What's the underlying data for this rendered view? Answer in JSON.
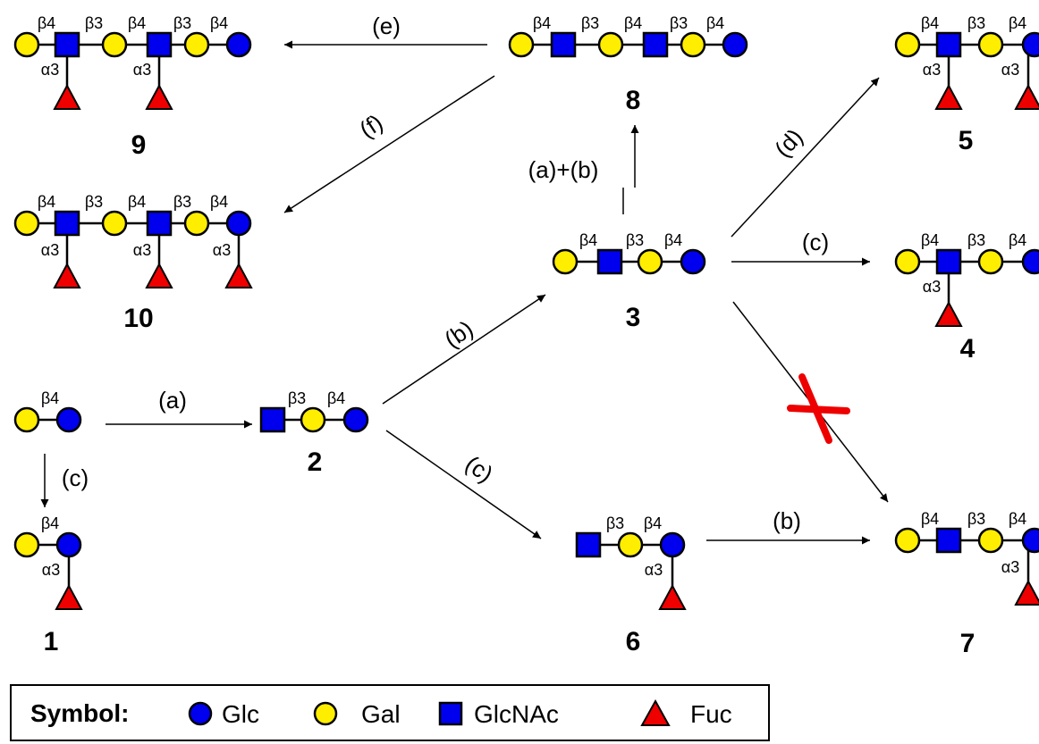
{
  "colors": {
    "glc": "#0000ee",
    "gal": "#ffee00",
    "glcnac": "#0000ee",
    "fuc": "#ee0000",
    "cross": "#ee0000"
  },
  "compounds": {
    "c1": {
      "number": "1",
      "links": [
        "β4",
        "α3"
      ]
    },
    "c2": {
      "number": "2",
      "links": [
        "β3",
        "β4"
      ]
    },
    "c3": {
      "number": "3",
      "links": [
        "β4",
        "β3",
        "β4"
      ]
    },
    "c4": {
      "number": "4",
      "links": [
        "β4",
        "β3",
        "β4",
        "α3"
      ]
    },
    "c5": {
      "number": "5",
      "links": [
        "β4",
        "β3",
        "β4",
        "α3",
        "α3"
      ]
    },
    "c6": {
      "number": "6",
      "links": [
        "β3",
        "β4",
        "α3"
      ]
    },
    "c7": {
      "number": "7",
      "links": [
        "β4",
        "β3",
        "β4",
        "α3"
      ]
    },
    "c8": {
      "number": "8",
      "links": [
        "β4",
        "β3",
        "β4",
        "β3",
        "β4"
      ]
    },
    "c9": {
      "number": "9",
      "links": [
        "β4",
        "β3",
        "β4",
        "β3",
        "β4",
        "α3",
        "α3"
      ]
    },
    "c10": {
      "number": "10",
      "links": [
        "β4",
        "β3",
        "β4",
        "β3",
        "β4",
        "α3",
        "α3",
        "α3"
      ]
    },
    "lactose": {
      "links": [
        "β4"
      ]
    }
  },
  "steps": {
    "a_top": "(a)",
    "b_to3": "(b)",
    "c_to6": "(c)",
    "c_down": "(c)",
    "ab": "(a)+(b)",
    "d": "(d)",
    "c_to4": "(c)",
    "b_to7": "(b)",
    "e": "(e)",
    "f": "(f)"
  },
  "legend": {
    "title": "Symbol:",
    "items": [
      {
        "label": "Glc",
        "shape": "circle",
        "color": "#0000ee"
      },
      {
        "label": "Gal",
        "shape": "circle",
        "color": "#ffee00"
      },
      {
        "label": "GlcNAc",
        "shape": "square",
        "color": "#0000ee"
      },
      {
        "label": "Fuc",
        "shape": "triangle",
        "color": "#ee0000"
      }
    ]
  }
}
